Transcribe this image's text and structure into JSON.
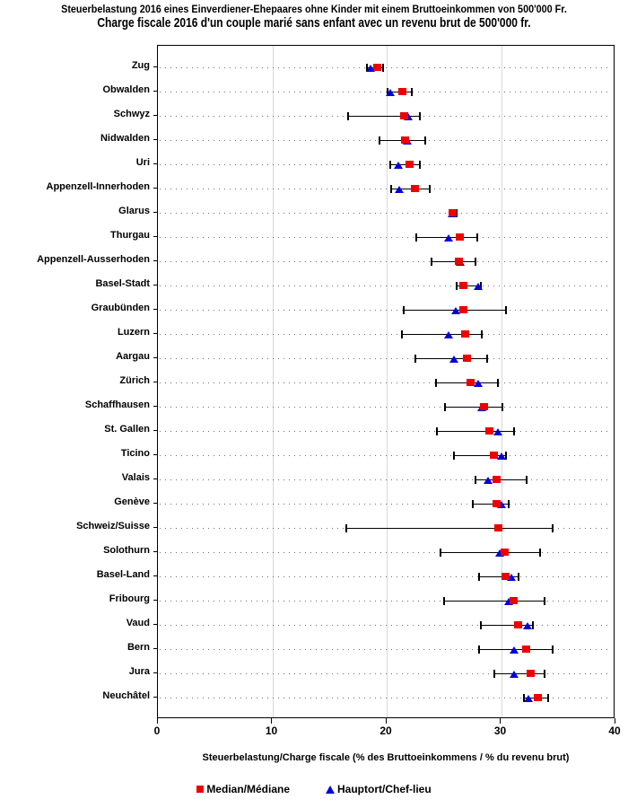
{
  "title": {
    "line1_de": "Steuerbelastung 2016 eines Einverdiener-Ehepaares ohne Kinder mit einem Bruttoeinkommen von 500'000 Fr.",
    "line2_fr": "Charge fiscale 2016 d'un couple marié sans enfant avec un revenu brut de 500'000 fr."
  },
  "chart_data": {
    "type": "scatter",
    "subtype": "dot-plot-with-min-max-range",
    "xlabel": "Steuerbelastung/Charge fiscale (% des Bruttoeinkommens / % du revenu brut)",
    "x_axis": {
      "range": [
        0,
        40
      ],
      "ticks": [
        0,
        10,
        20,
        30,
        40
      ],
      "gridlines": [
        10,
        20,
        30
      ]
    },
    "colors": {
      "median": "#ee0000",
      "capital": "#0000dd",
      "gridline": "#d9d9d9",
      "whisker": "#000000",
      "dotted_row_line": "#6e6e6e"
    },
    "legend": [
      {
        "label": "Median/Médiane",
        "marker": "square",
        "color": "#ee0000"
      },
      {
        "label": "Hauptort/Chef-lieu",
        "marker": "triangle",
        "color": "#0000dd"
      }
    ],
    "rows": [
      {
        "canton": "Zug",
        "min": 18.3,
        "capital": 18.6,
        "median": 19.2,
        "max": 19.7
      },
      {
        "canton": "Obwalden",
        "min": 20.1,
        "capital": 20.3,
        "median": 21.4,
        "max": 22.2
      },
      {
        "canton": "Schwyz",
        "min": 16.6,
        "capital": 21.9,
        "median": 21.5,
        "max": 22.9
      },
      {
        "canton": "Nidwalden",
        "min": 19.4,
        "capital": 21.8,
        "median": 21.6,
        "max": 23.4
      },
      {
        "canton": "Uri",
        "min": 20.3,
        "capital": 21.0,
        "median": 22.0,
        "max": 22.9
      },
      {
        "canton": "Appenzell-Innerhoden",
        "min": 20.4,
        "capital": 21.1,
        "median": 22.5,
        "max": 23.8
      },
      {
        "canton": "Glarus",
        "min": 25.5,
        "capital": 25.7,
        "median": 25.8,
        "max": 26.1
      },
      {
        "canton": "Thurgau",
        "min": 22.6,
        "capital": 25.4,
        "median": 26.4,
        "max": 27.9
      },
      {
        "canton": "Appenzell-Ausserhoden",
        "min": 23.9,
        "capital": 26.4,
        "median": 26.3,
        "max": 27.8
      },
      {
        "canton": "Basel-Stadt",
        "min": 26.1,
        "capital": 28.0,
        "median": 26.7,
        "max": 28.2
      },
      {
        "canton": "Graubünden",
        "min": 21.5,
        "capital": 26.0,
        "median": 26.7,
        "max": 30.4
      },
      {
        "canton": "Luzern",
        "min": 21.3,
        "capital": 25.4,
        "median": 26.9,
        "max": 28.3
      },
      {
        "canton": "Aargau",
        "min": 22.5,
        "capital": 25.9,
        "median": 27.0,
        "max": 28.8
      },
      {
        "canton": "Zürich",
        "min": 24.3,
        "capital": 28.0,
        "median": 27.3,
        "max": 29.7
      },
      {
        "canton": "Schaffhausen",
        "min": 25.1,
        "capital": 28.3,
        "median": 28.5,
        "max": 30.1
      },
      {
        "canton": "St. Gallen",
        "min": 24.4,
        "capital": 29.7,
        "median": 29.0,
        "max": 31.1
      },
      {
        "canton": "Ticino",
        "min": 25.9,
        "capital": 30.0,
        "median": 29.4,
        "max": 30.4
      },
      {
        "canton": "Valais",
        "min": 27.8,
        "capital": 28.9,
        "median": 29.6,
        "max": 32.2
      },
      {
        "canton": "Genève",
        "min": 27.5,
        "capital": 30.0,
        "median": 29.6,
        "max": 30.7
      },
      {
        "canton": "Schweiz/Suisse",
        "min": 16.5,
        "capital": null,
        "median": 29.8,
        "max": 34.5
      },
      {
        "canton": "Solothurn",
        "min": 24.7,
        "capital": 29.9,
        "median": 30.3,
        "max": 33.4
      },
      {
        "canton": "Basel-Land",
        "min": 28.1,
        "capital": 30.9,
        "median": 30.4,
        "max": 31.5
      },
      {
        "canton": "Fribourg",
        "min": 25.0,
        "capital": 30.7,
        "median": 31.1,
        "max": 33.8
      },
      {
        "canton": "Vaud",
        "min": 28.2,
        "capital": 32.3,
        "median": 31.5,
        "max": 32.8
      },
      {
        "canton": "Bern",
        "min": 28.1,
        "capital": 31.1,
        "median": 32.2,
        "max": 34.5
      },
      {
        "canton": "Jura",
        "min": 29.4,
        "capital": 31.1,
        "median": 32.6,
        "max": 33.8
      },
      {
        "canton": "Neuchâtel",
        "min": 32.0,
        "capital": 32.4,
        "median": 33.2,
        "max": 34.1
      }
    ]
  }
}
